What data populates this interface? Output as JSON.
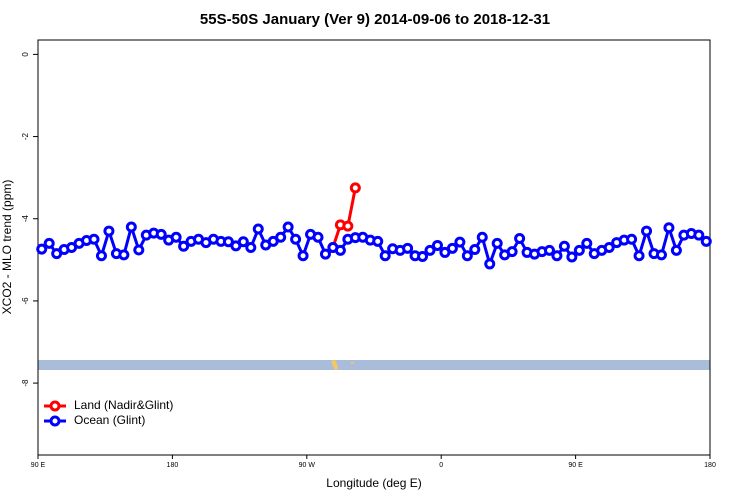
{
  "chart_data": {
    "type": "line",
    "title": "55S-50S January (Ver 9)   2014-09-06 to 2018-12-31",
    "x_label": "Longitude (deg E)",
    "y_label": "XCO2 - MLO trend (ppm)",
    "xlim": [
      90,
      540
    ],
    "ylim": [
      -9.75,
      0.35
    ],
    "xticks": [
      {
        "value": 90,
        "label": "90 E"
      },
      {
        "value": 180,
        "label": "180"
      },
      {
        "value": 270,
        "label": "90 W"
      },
      {
        "value": 360,
        "label": "0"
      },
      {
        "value": 450,
        "label": "90 E"
      },
      {
        "value": 540,
        "label": "180"
      }
    ],
    "yticks": [
      0,
      -2,
      -4,
      -6,
      -8
    ],
    "legend": "bottom-left",
    "series": [
      {
        "name": "Land (Nadir&Glint)",
        "color": "#ff0000",
        "x": [
          287.5,
          292.5,
          297.5,
          302.5
        ],
        "values": [
          -4.7,
          -4.15,
          -4.18,
          -3.25
        ]
      },
      {
        "name": "Ocean (Glint)",
        "color": "#0000ff",
        "x": [
          92.5,
          97.5,
          102.5,
          107.5,
          112.5,
          117.5,
          122.5,
          127.5,
          132.5,
          137.5,
          142.5,
          147.5,
          152.5,
          157.5,
          162.5,
          167.5,
          172.5,
          177.5,
          182.5,
          187.5,
          192.5,
          197.5,
          202.5,
          207.5,
          212.5,
          217.5,
          222.5,
          227.5,
          232.5,
          237.5,
          242.5,
          247.5,
          252.5,
          257.5,
          262.5,
          267.5,
          272.5,
          277.5,
          282.5,
          287.5,
          292.5,
          297.5,
          302.5,
          307.5,
          312.5,
          317.5,
          322.5,
          327.5,
          332.5,
          337.5,
          342.5,
          347.5,
          352.5,
          357.5,
          362.5,
          367.5,
          372.5,
          377.5,
          382.5,
          387.5,
          392.5,
          397.5,
          402.5,
          407.5,
          412.5,
          417.5,
          422.5,
          427.5,
          432.5,
          437.5,
          442.5,
          447.5,
          452.5,
          457.5,
          462.5,
          467.5,
          472.5,
          477.5,
          482.5,
          487.5,
          492.5,
          497.5,
          502.5,
          507.5,
          512.5,
          517.5,
          522.5,
          527.5,
          532.5,
          537.5
        ],
        "values": [
          -4.74,
          -4.6,
          -4.85,
          -4.75,
          -4.7,
          -4.6,
          -4.53,
          -4.5,
          -4.9,
          -4.3,
          -4.85,
          -4.88,
          -4.2,
          -4.76,
          -4.4,
          -4.35,
          -4.38,
          -4.52,
          -4.45,
          -4.67,
          -4.55,
          -4.5,
          -4.58,
          -4.5,
          -4.55,
          -4.56,
          -4.66,
          -4.56,
          -4.7,
          -4.25,
          -4.64,
          -4.55,
          -4.45,
          -4.2,
          -4.5,
          -4.9,
          -4.38,
          -4.45,
          -4.86,
          -4.7,
          -4.77,
          -4.5,
          -4.46,
          -4.45,
          -4.52,
          -4.55,
          -4.9,
          -4.73,
          -4.77,
          -4.72,
          -4.9,
          -4.92,
          -4.77,
          -4.65,
          -4.82,
          -4.72,
          -4.57,
          -4.9,
          -4.75,
          -4.45,
          -5.1,
          -4.6,
          -4.88,
          -4.8,
          -4.48,
          -4.82,
          -4.86,
          -4.8,
          -4.77,
          -4.9,
          -4.67,
          -4.93,
          -4.77,
          -4.6,
          -4.85,
          -4.77,
          -4.7,
          -4.58,
          -4.52,
          -4.5,
          -4.9,
          -4.3,
          -4.85,
          -4.88,
          -4.22,
          -4.77,
          -4.4,
          -4.36,
          -4.4,
          -4.55
        ]
      }
    ]
  }
}
